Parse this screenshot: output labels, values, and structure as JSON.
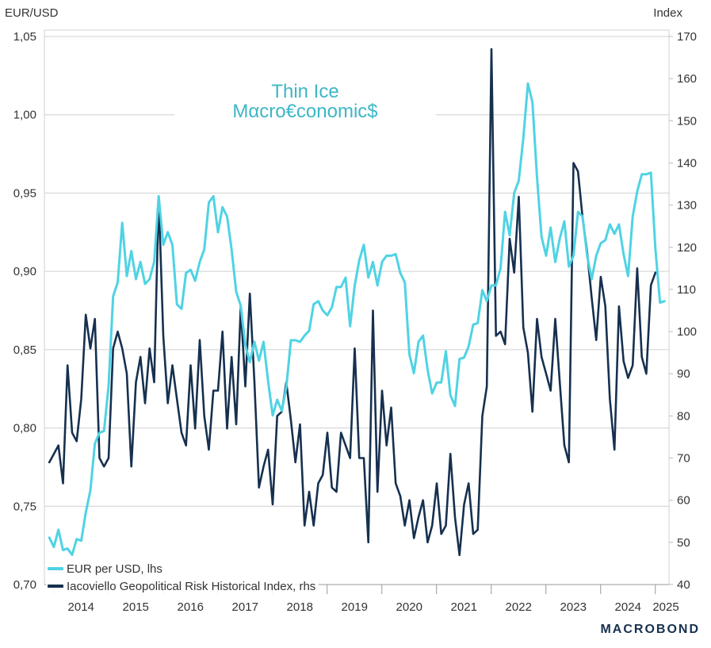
{
  "axis_titles": {
    "left": "EUR/USD",
    "right": "Index"
  },
  "watermark": {
    "line1": "Thin Ice",
    "line2": "Mαcro€conomic$"
  },
  "legend": [
    {
      "label": "EUR per USD, lhs",
      "color": "#4fd3e4"
    },
    {
      "label": "Iacoviello Geopolitical Risk Historical Index, rhs",
      "color": "#16304f"
    }
  ],
  "brand": "MACROBOND",
  "chart_data": {
    "type": "line",
    "x_tick_labels": [
      "2014",
      "2015",
      "2016",
      "2017",
      "2018",
      "2019",
      "2020",
      "2021",
      "2022",
      "2023",
      "2024",
      "2025"
    ],
    "y_left": {
      "lim": [
        0.7,
        1.05
      ],
      "ticks": [
        "0,70",
        "0,75",
        "0,80",
        "0,85",
        "0,90",
        "0,95",
        "1,00",
        "1,05"
      ]
    },
    "y_right": {
      "lim": [
        40,
        170
      ],
      "ticks": [
        "40",
        "50",
        "60",
        "70",
        "80",
        "90",
        "100",
        "110",
        "120",
        "130",
        "140",
        "150",
        "160",
        "170"
      ]
    },
    "grid": true,
    "legend_position": "bottom-left",
    "series": [
      {
        "name": "EUR per USD, lhs",
        "axis": "left",
        "color": "#4fd3e4",
        "x_start": 2013.92,
        "x_step": 0.08333,
        "values": [
          0.73,
          0.724,
          0.735,
          0.722,
          0.723,
          0.719,
          0.729,
          0.728,
          0.746,
          0.76,
          0.79,
          0.797,
          0.798,
          0.827,
          0.884,
          0.893,
          0.931,
          0.897,
          0.913,
          0.895,
          0.906,
          0.892,
          0.895,
          0.906,
          0.948,
          0.917,
          0.925,
          0.917,
          0.879,
          0.876,
          0.899,
          0.901,
          0.894,
          0.906,
          0.914,
          0.944,
          0.948,
          0.925,
          0.941,
          0.935,
          0.914,
          0.887,
          0.878,
          0.853,
          0.842,
          0.855,
          0.843,
          0.855,
          0.83,
          0.808,
          0.818,
          0.811,
          0.826,
          0.856,
          0.856,
          0.855,
          0.859,
          0.862,
          0.879,
          0.881,
          0.875,
          0.872,
          0.877,
          0.89,
          0.89,
          0.896,
          0.865,
          0.891,
          0.907,
          0.917,
          0.896,
          0.906,
          0.891,
          0.906,
          0.91,
          0.91,
          0.911,
          0.899,
          0.893,
          0.847,
          0.835,
          0.855,
          0.859,
          0.837,
          0.822,
          0.829,
          0.829,
          0.849,
          0.821,
          0.814,
          0.844,
          0.845,
          0.852,
          0.866,
          0.867,
          0.888,
          0.881,
          0.891,
          0.891,
          0.902,
          0.938,
          0.923,
          0.95,
          0.958,
          0.985,
          1.02,
          1.008,
          0.96,
          0.922,
          0.91,
          0.928,
          0.906,
          0.921,
          0.932,
          0.903,
          0.91,
          0.938,
          0.935,
          0.91,
          0.895,
          0.91,
          0.918,
          0.92,
          0.93,
          0.924,
          0.93,
          0.911,
          0.897,
          0.935,
          0.951,
          0.962,
          0.962,
          0.963,
          0.914,
          0.88,
          0.881
        ]
      },
      {
        "name": "Iacoviello Geopolitical Risk Historical Index, rhs",
        "axis": "right",
        "color": "#16304f",
        "x_start": 2013.92,
        "x_step": 0.08333,
        "values": [
          69,
          71,
          73,
          64,
          92,
          76,
          74,
          84,
          104,
          96,
          103,
          70,
          68,
          70,
          96,
          100,
          96,
          90,
          68,
          88,
          94,
          83,
          96,
          88,
          132,
          99,
          83,
          92,
          84,
          76,
          73,
          92,
          77,
          98,
          80,
          72,
          86,
          86,
          100,
          77,
          94,
          78,
          106,
          87,
          109,
          88,
          63,
          68,
          72,
          59,
          80,
          81,
          88,
          79,
          69,
          78,
          54,
          62,
          54,
          64,
          66,
          76,
          63,
          62,
          76,
          73,
          70,
          96,
          70,
          70,
          50,
          105,
          62,
          86,
          73,
          82,
          64,
          61,
          54,
          60,
          51,
          56,
          60,
          50,
          54,
          64,
          52,
          54,
          71,
          56,
          47,
          59,
          64,
          52,
          53,
          80,
          87,
          167,
          99,
          100,
          97,
          122,
          114,
          132,
          101,
          95,
          81,
          103,
          94,
          90,
          86,
          103,
          88,
          73,
          69,
          140,
          138,
          127,
          119,
          108,
          98,
          113,
          106,
          84,
          72,
          106,
          93,
          89,
          92,
          115,
          94,
          90,
          111,
          114
        ]
      }
    ]
  }
}
